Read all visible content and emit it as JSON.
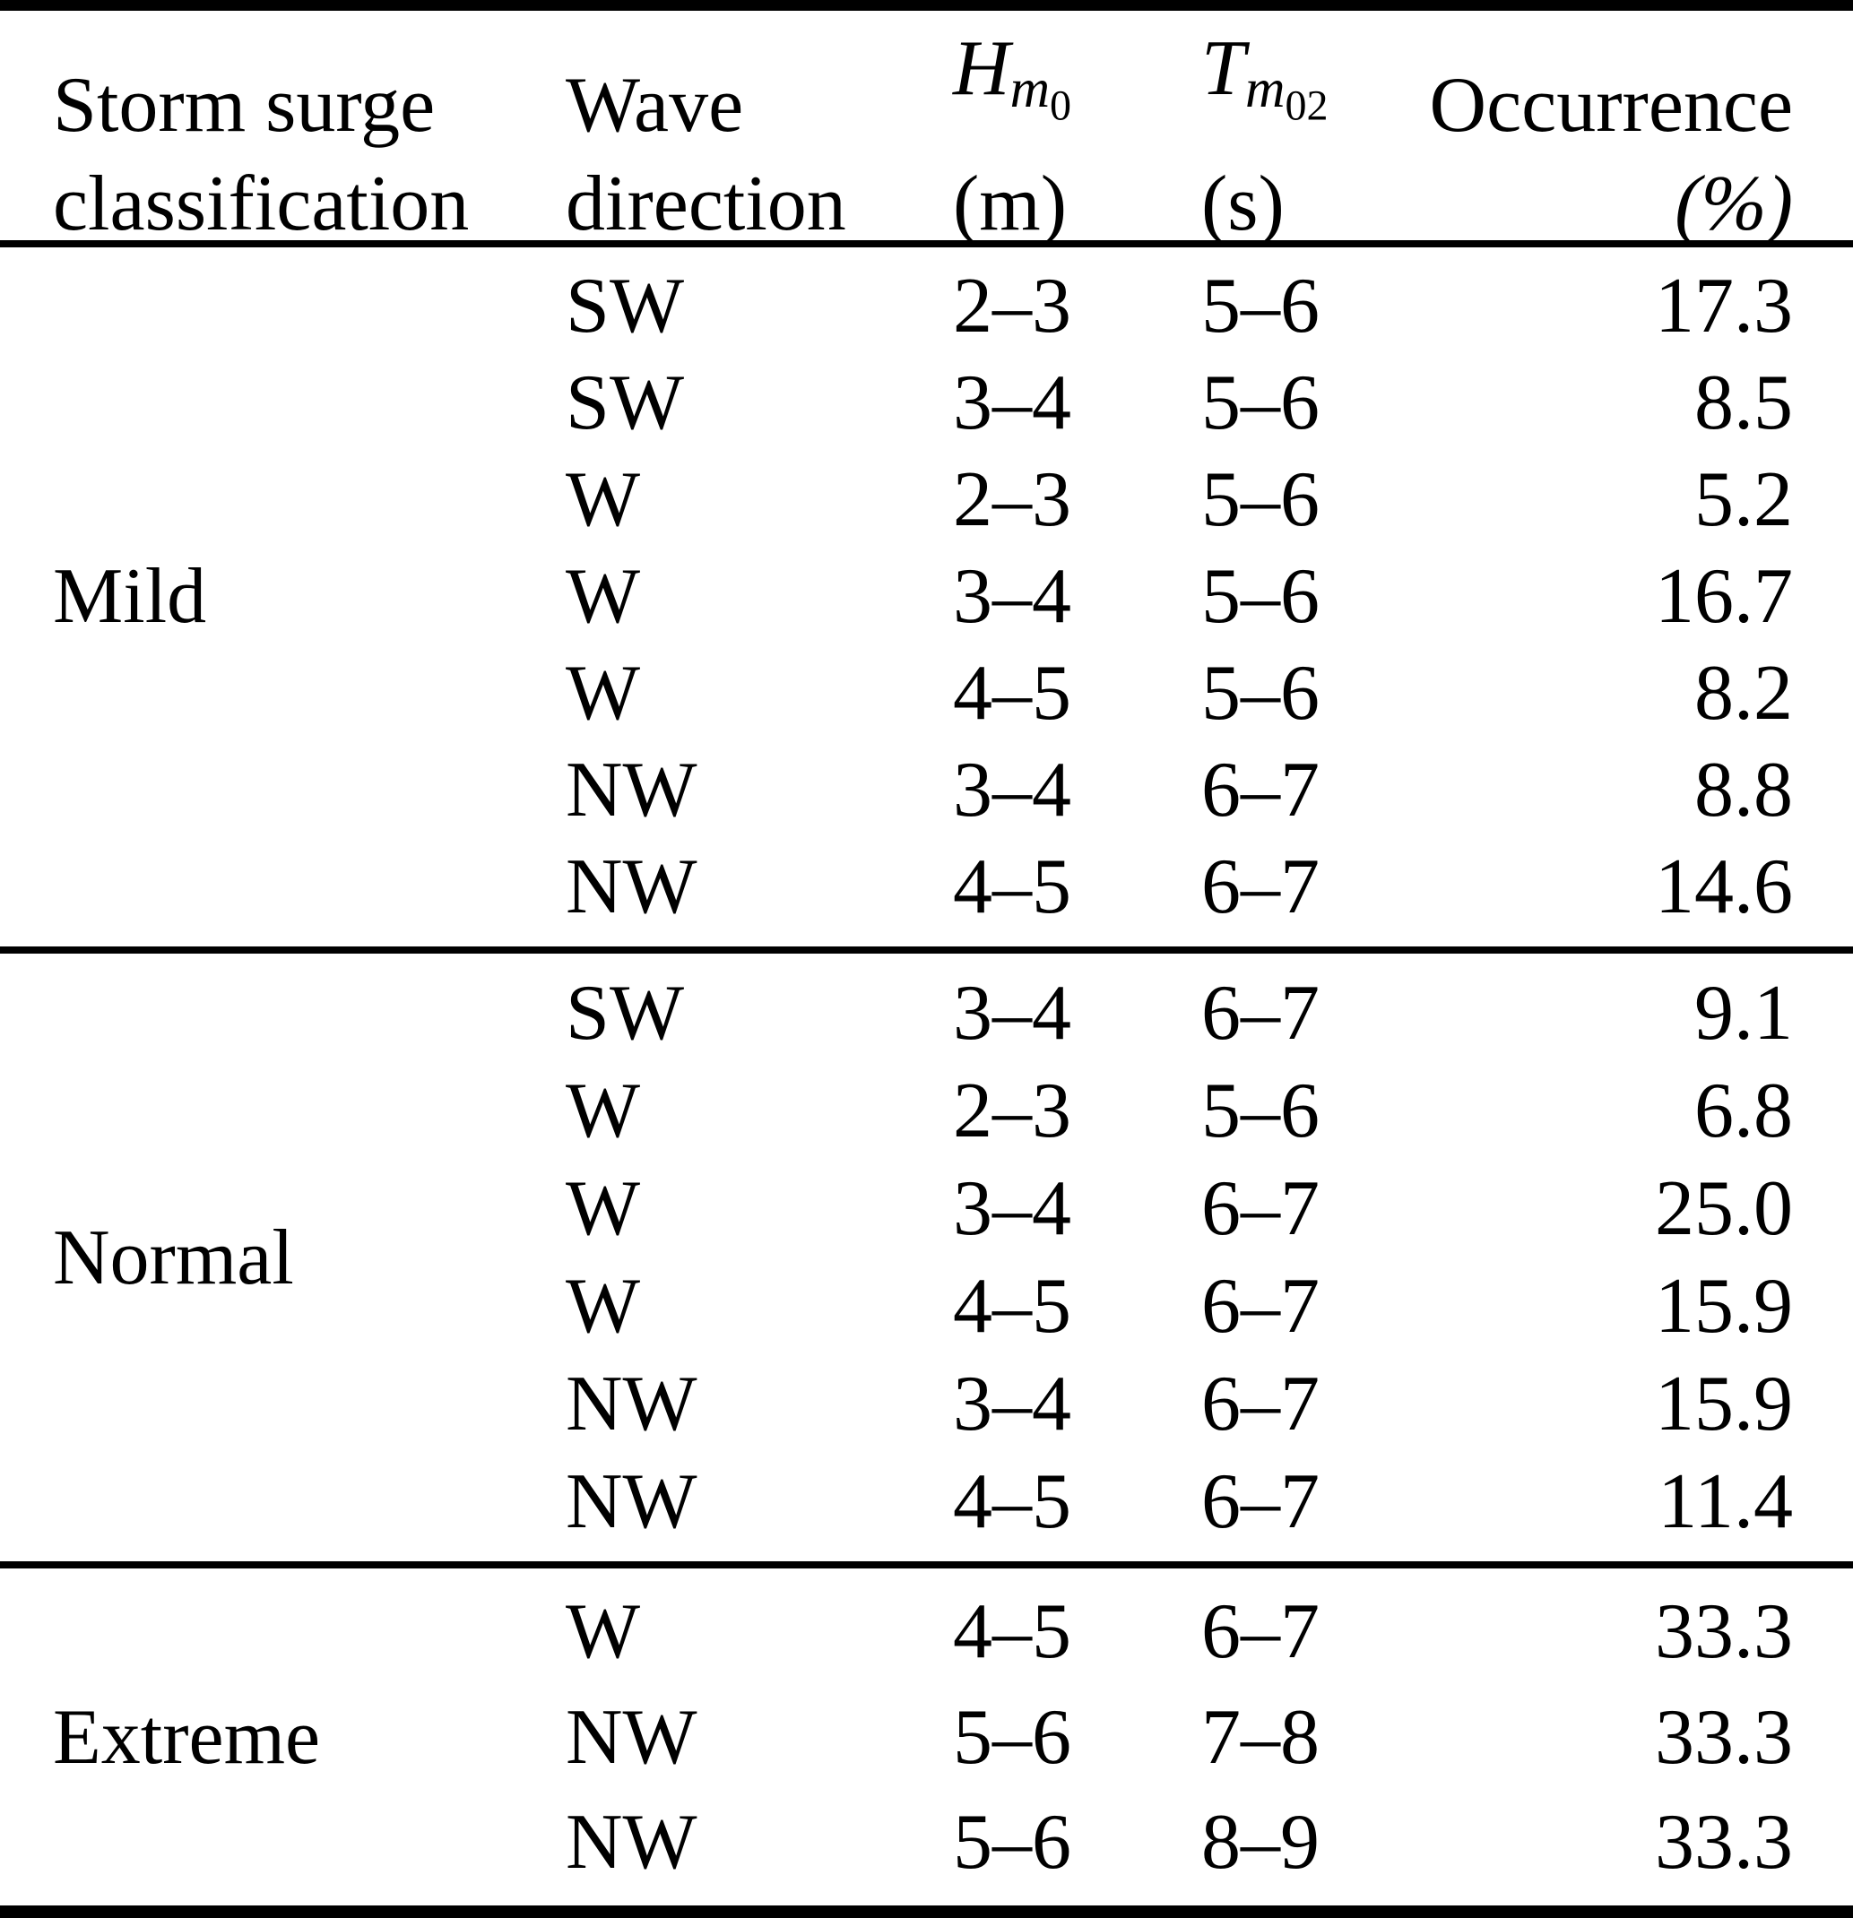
{
  "table": {
    "header": {
      "classification_line1": "Storm surge",
      "classification_line2": "classification",
      "direction_line1": "Wave",
      "direction_line2": "direction",
      "hm0": {
        "base": "H",
        "sub": "m",
        "subsub": "0",
        "unit": "(m)"
      },
      "tm02": {
        "base": "T",
        "sub": "m",
        "subsub": "02",
        "unit": "(s)"
      },
      "occurrence_line1": "Occurrence",
      "occurrence_line2": "(%)"
    },
    "sections": [
      {
        "classification": "Mild",
        "rows": [
          {
            "direction": "SW",
            "hm0": "2–3",
            "tm02": "5–6",
            "occurrence": "17.3"
          },
          {
            "direction": "SW",
            "hm0": "3–4",
            "tm02": "5–6",
            "occurrence": "8.5"
          },
          {
            "direction": "W",
            "hm0": "2–3",
            "tm02": "5–6",
            "occurrence": "5.2"
          },
          {
            "direction": "W",
            "hm0": "3–4",
            "tm02": "5–6",
            "occurrence": "16.7"
          },
          {
            "direction": "W",
            "hm0": "4–5",
            "tm02": "5–6",
            "occurrence": "8.2"
          },
          {
            "direction": "NW",
            "hm0": "3–4",
            "tm02": "6–7",
            "occurrence": "8.8"
          },
          {
            "direction": "NW",
            "hm0": "4–5",
            "tm02": "6–7",
            "occurrence": "14.6"
          }
        ]
      },
      {
        "classification": "Normal",
        "rows": [
          {
            "direction": "SW",
            "hm0": "3–4",
            "tm02": "6–7",
            "occurrence": "9.1"
          },
          {
            "direction": "W",
            "hm0": "2–3",
            "tm02": "5–6",
            "occurrence": "6.8"
          },
          {
            "direction": "W",
            "hm0": "3–4",
            "tm02": "6–7",
            "occurrence": "25.0"
          },
          {
            "direction": "W",
            "hm0": "4–5",
            "tm02": "6–7",
            "occurrence": "15.9"
          },
          {
            "direction": "NW",
            "hm0": "3–4",
            "tm02": "6–7",
            "occurrence": "15.9"
          },
          {
            "direction": "NW",
            "hm0": "4–5",
            "tm02": "6–7",
            "occurrence": "11.4"
          }
        ]
      },
      {
        "classification": "Extreme",
        "rows": [
          {
            "direction": "W",
            "hm0": "4–5",
            "tm02": "6–7",
            "occurrence": "33.3"
          },
          {
            "direction": "NW",
            "hm0": "5–6",
            "tm02": "7–8",
            "occurrence": "33.3"
          },
          {
            "direction": "NW",
            "hm0": "5–6",
            "tm02": "8–9",
            "occurrence": "33.3"
          }
        ]
      }
    ],
    "colors": {
      "text": "#000000",
      "background": "#ffffff",
      "rule": "#000000"
    }
  }
}
